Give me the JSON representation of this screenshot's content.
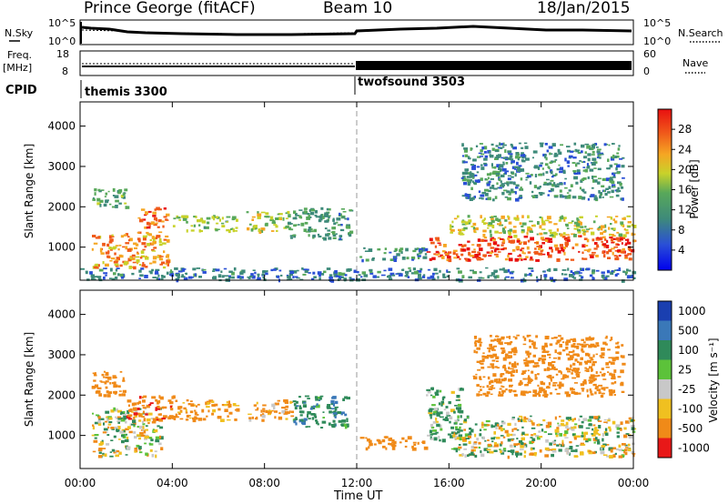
{
  "header": {
    "station": "Prince George (fitACF)",
    "beam": "Beam 10",
    "date": "18/Jan/2015"
  },
  "sky_panel": {
    "left_label": "N.Sky",
    "left_ticks": [
      "10^5",
      "10^0"
    ],
    "right_ticks": [
      "10^5",
      "10^0"
    ],
    "right_label": "N.Search"
  },
  "freq_panel": {
    "left_label_1": "Freq.",
    "left_label_2": "[MHz]",
    "left_ticks": [
      "18",
      "8"
    ],
    "right_ticks": [
      "60",
      "0"
    ],
    "right_label": "Nave"
  },
  "cpid_panel": {
    "label": "CPID",
    "program_1": "themis 3300",
    "program_2": "twofsound 3503"
  },
  "power_panel": {
    "ylabel": "Slant Range [km]",
    "colorbar_label": "Power [dB]",
    "colorbar_ticks": [
      "28",
      "24",
      "20",
      "16",
      "12",
      "8",
      "4"
    ]
  },
  "velocity_panel": {
    "ylabel": "Slant Range [km]",
    "colorbar_label": "Velocity [m s⁻¹]",
    "colorbar_ticks": [
      "1000",
      "500",
      "100",
      "25",
      "-25",
      "-100",
      "-500",
      "-1000"
    ]
  },
  "xaxis": {
    "label": "Time UT",
    "ticks": [
      "00:00",
      "04:00",
      "08:00",
      "12:00",
      "16:00",
      "20:00",
      "00:00"
    ]
  },
  "chart_data": [
    {
      "type": "heatmap",
      "title": "Power",
      "xlabel": "Time UT",
      "ylabel": "Slant Range [km]",
      "xlim": [
        0,
        24
      ],
      "ylim": [
        180,
        4600
      ],
      "yticks": [
        1000,
        2000,
        3000,
        4000
      ],
      "colorbar": {
        "label": "Power [dB]",
        "range": [
          0,
          32
        ],
        "ticks": [
          4,
          8,
          12,
          16,
          20,
          24,
          28
        ]
      },
      "regions": [
        {
          "t0": 0.5,
          "t1": 3.8,
          "r0": 500,
          "r1": 1400,
          "value": 22
        },
        {
          "t0": 0.5,
          "t1": 2.0,
          "r0": 2000,
          "r1": 2500,
          "value": 12
        },
        {
          "t0": 2.5,
          "t1": 3.8,
          "r0": 1500,
          "r1": 2000,
          "value": 24
        },
        {
          "t0": 4.0,
          "t1": 6.8,
          "r0": 1400,
          "r1": 1800,
          "value": 14
        },
        {
          "t0": 7.2,
          "t1": 9.0,
          "r0": 1400,
          "r1": 1900,
          "value": 16
        },
        {
          "t0": 9.0,
          "t1": 11.7,
          "r0": 1200,
          "r1": 2000,
          "value": 10
        },
        {
          "t0": 12.1,
          "t1": 15.0,
          "r0": 700,
          "r1": 1000,
          "value": 8
        },
        {
          "t0": 15.0,
          "t1": 24.0,
          "r0": 700,
          "r1": 1300,
          "value": 26
        },
        {
          "t0": 16.0,
          "t1": 24.0,
          "r0": 1300,
          "r1": 1800,
          "value": 18
        },
        {
          "t0": 16.5,
          "t1": 23.5,
          "r0": 2200,
          "r1": 3600,
          "value": 8
        },
        {
          "t0": 0.0,
          "t1": 24.0,
          "r0": 200,
          "r1": 500,
          "value": 6
        }
      ]
    },
    {
      "type": "heatmap",
      "title": "Velocity",
      "xlabel": "Time UT",
      "ylabel": "Slant Range [km]",
      "xlim": [
        0,
        24
      ],
      "ylim": [
        180,
        4600
      ],
      "yticks": [
        1000,
        2000,
        3000,
        4000
      ],
      "colorbar": {
        "label": "Velocity [m s⁻¹]",
        "range": [
          -1000,
          1000
        ],
        "ticks": [
          1000,
          500,
          100,
          25,
          -25,
          -100,
          -500,
          -1000
        ]
      },
      "regions": [
        {
          "t0": 0.5,
          "t1": 3.5,
          "r0": 500,
          "r1": 1700,
          "value": 0
        },
        {
          "t0": 0.5,
          "t1": 2.0,
          "r0": 2000,
          "r1": 2600,
          "value": -300
        },
        {
          "t0": 2.0,
          "t1": 4.2,
          "r0": 1400,
          "r1": 2000,
          "value": -400
        },
        {
          "t0": 4.2,
          "t1": 6.8,
          "r0": 1400,
          "r1": 1900,
          "value": -200
        },
        {
          "t0": 7.2,
          "t1": 9.2,
          "r0": 1400,
          "r1": 1900,
          "value": -150
        },
        {
          "t0": 9.2,
          "t1": 11.7,
          "r0": 1200,
          "r1": 2000,
          "value": 200
        },
        {
          "t0": 12.1,
          "t1": 15.0,
          "r0": 700,
          "r1": 1000,
          "value": -300
        },
        {
          "t0": 15.0,
          "t1": 16.5,
          "r0": 900,
          "r1": 2200,
          "value": 100
        },
        {
          "t0": 16.0,
          "t1": 24.0,
          "r0": 500,
          "r1": 1500,
          "value": 0
        },
        {
          "t0": 17.0,
          "t1": 23.5,
          "r0": 2000,
          "r1": 3500,
          "value": -350
        }
      ]
    }
  ]
}
